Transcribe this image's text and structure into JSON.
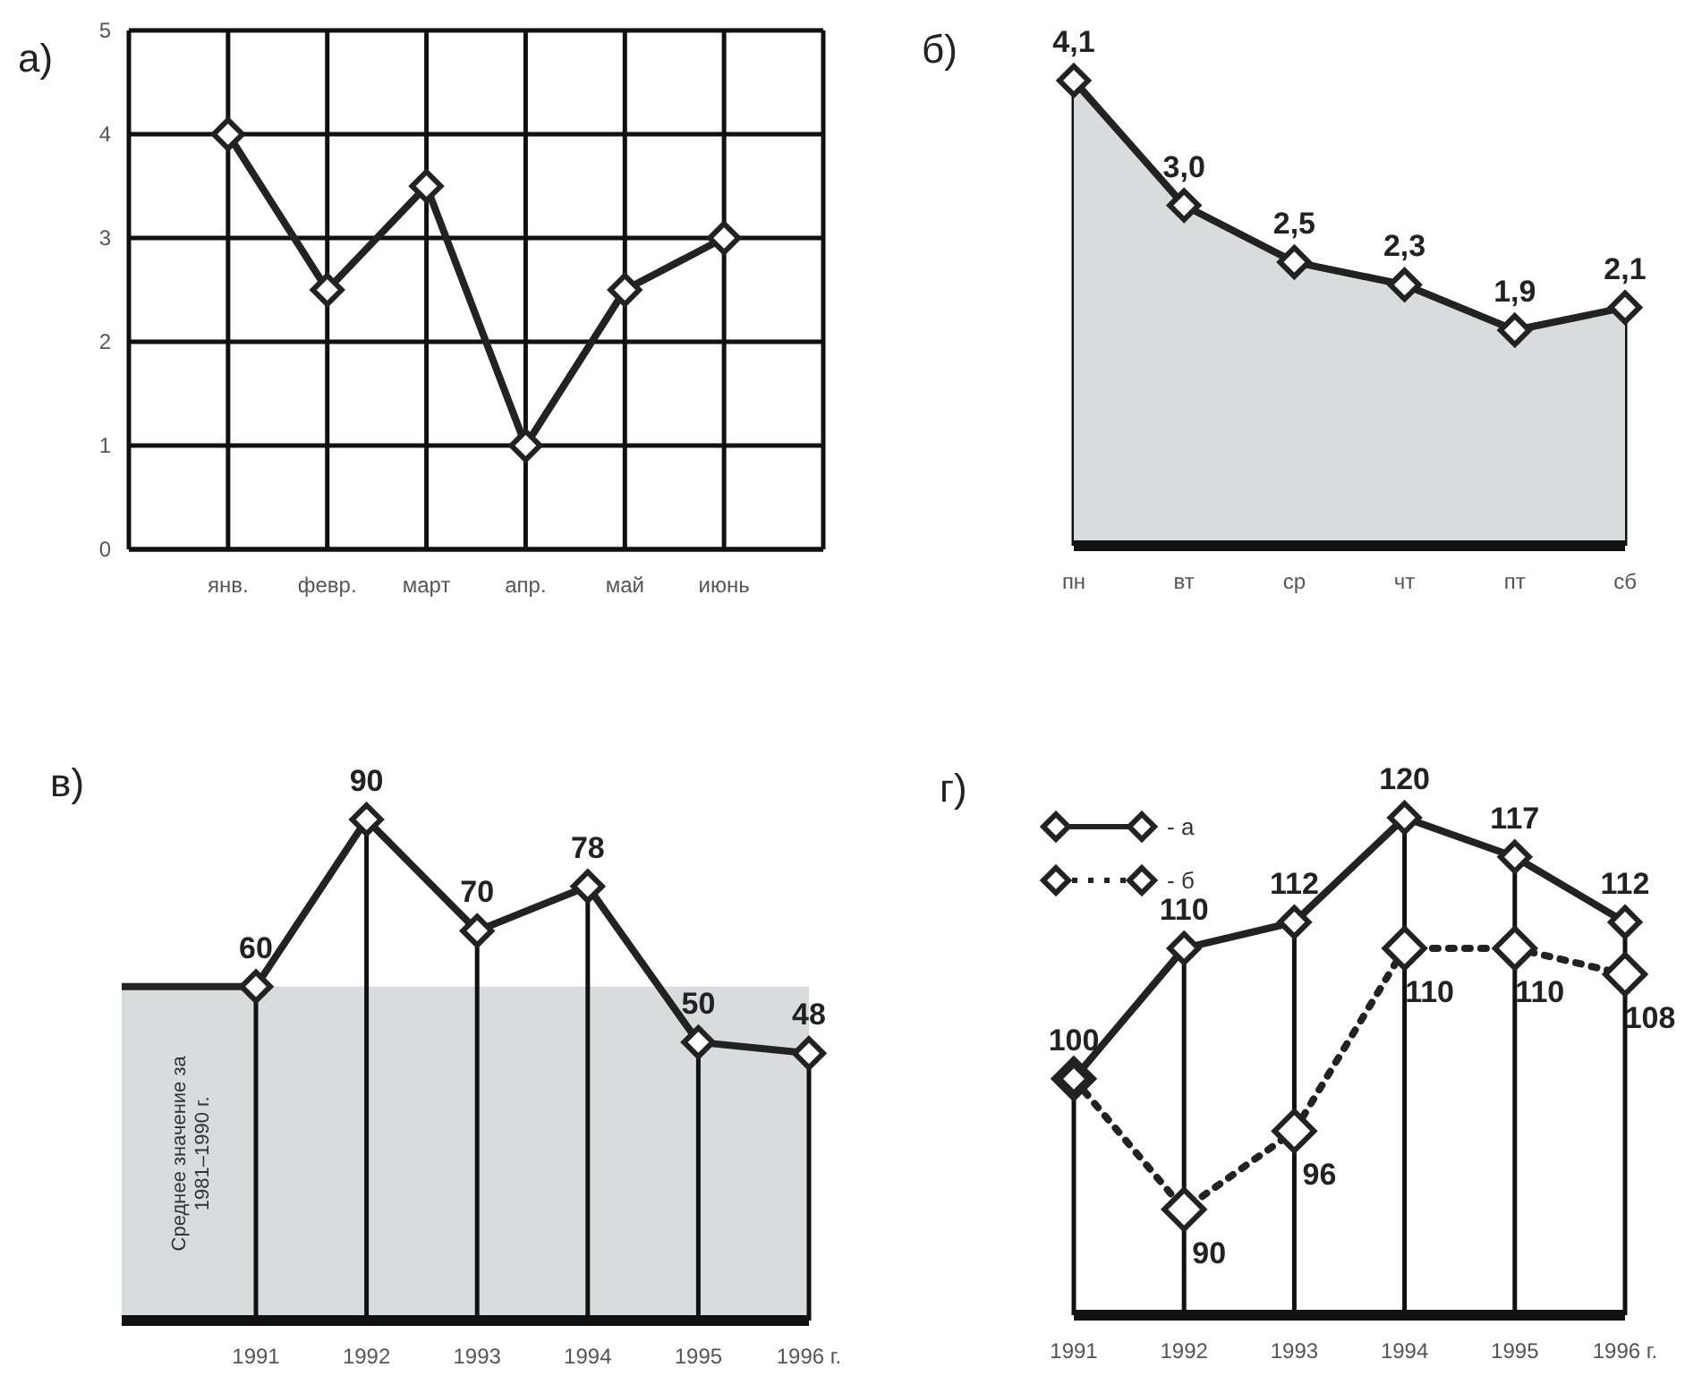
{
  "chart_data": [
    {
      "type": "line",
      "title": "а)",
      "categories": [
        "янв.",
        "февр.",
        "март",
        "апр.",
        "май",
        "июнь"
      ],
      "series": [
        {
          "color": "#222222",
          "values": [
            4,
            2.5,
            3.5,
            1,
            2.5,
            3
          ]
        }
      ],
      "ylim": [
        0,
        5
      ],
      "yticks": [
        0,
        1,
        2,
        3,
        4,
        5
      ],
      "grid": true,
      "marker": "diamond",
      "line_style": "solid",
      "legend": false
    },
    {
      "type": "area",
      "title": "б)",
      "categories": [
        "пн",
        "вт",
        "ср",
        "чт",
        "пт",
        "сб"
      ],
      "series": [
        {
          "color": "#d9dcdc",
          "values": [
            4.1,
            3.0,
            2.5,
            2.3,
            1.9,
            2.1
          ],
          "value_labels": [
            "4,1",
            "3,0",
            "2,5",
            "2,3",
            "1,9",
            "2,1"
          ]
        }
      ],
      "tick_labels": "x",
      "grid": "x",
      "marker": "diamond",
      "line_style": "solid",
      "legend": false
    },
    {
      "type": "line",
      "title": "в)",
      "categories": [
        "1991",
        "1992",
        "1993",
        "1994",
        "1995",
        "1996 г."
      ],
      "series": [
        {
          "color": "#222222",
          "values": [
            60,
            90,
            70,
            78,
            50,
            48
          ],
          "value_labels": [
            "60",
            "90",
            "70",
            "78",
            "50",
            "48"
          ]
        }
      ],
      "bands": [
        {
          "axis": "y",
          "from": 0,
          "to": 60,
          "label": "Среднее значение за 1981–1990 г.",
          "color": "#d9dcdc"
        }
      ],
      "tick_labels": "x",
      "grid": "x",
      "marker": "diamond",
      "line_style": "solid",
      "legend": false
    },
    {
      "type": "line",
      "title": "г)",
      "categories": [
        "1991",
        "1992",
        "1993",
        "1994",
        "1995",
        "1996 г."
      ],
      "series": [
        {
          "name": "- а",
          "color": "#222222",
          "values": [
            100,
            110,
            112,
            120,
            117,
            112
          ],
          "value_labels": [
            "100",
            "110",
            "112",
            "120",
            "117",
            "112"
          ],
          "line_style": "solid"
        },
        {
          "name": "- б",
          "color": "#222222",
          "values": [
            100,
            90,
            96,
            110,
            110,
            108
          ],
          "value_labels": [
            null,
            "90",
            "96",
            "110",
            "110",
            "108"
          ],
          "line_style": "dotted"
        }
      ],
      "tick_labels": "x",
      "grid": "x",
      "marker": "diamond",
      "legend": "top left"
    }
  ]
}
